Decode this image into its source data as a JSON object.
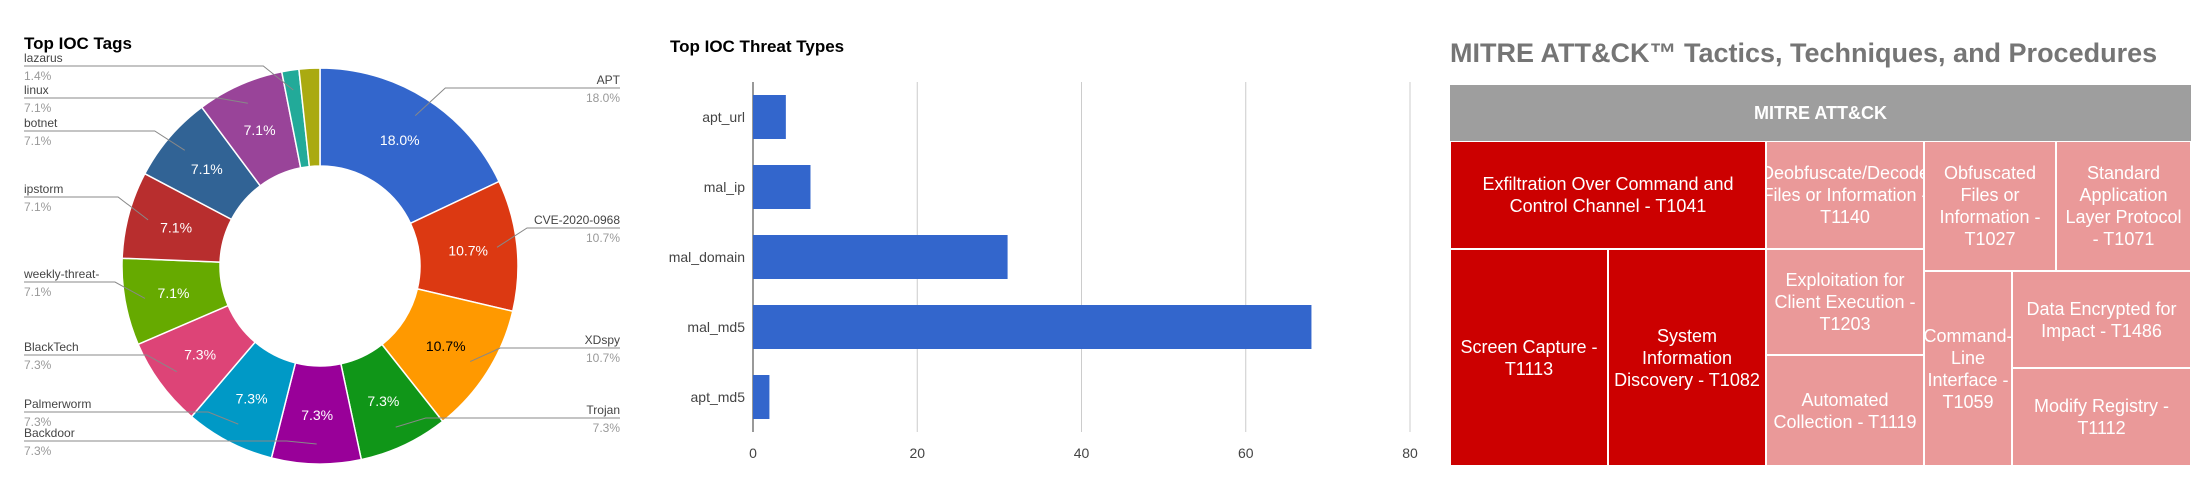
{
  "chart_data": [
    {
      "type": "pie",
      "title": "Top IOC Tags",
      "donut": true,
      "slices": [
        {
          "label": "APT",
          "value": 18.0,
          "display": "18.0%",
          "color": "#3366cc",
          "side": "right"
        },
        {
          "label": "CVE-2020-0968",
          "value": 10.7,
          "display": "10.7%",
          "color": "#dc3912",
          "side": "right"
        },
        {
          "label": "XDspy",
          "value": 10.7,
          "display": "10.7%",
          "color": "#ff9900",
          "side": "right"
        },
        {
          "label": "Trojan",
          "value": 7.3,
          "display": "7.3%",
          "color": "#109618",
          "side": "right"
        },
        {
          "label": "Backdoor",
          "value": 7.3,
          "display": "7.3%",
          "color": "#990099",
          "side": "left"
        },
        {
          "label": "Palmerworm",
          "value": 7.3,
          "display": "7.3%",
          "color": "#0099c6",
          "side": "left"
        },
        {
          "label": "BlackTech",
          "value": 7.3,
          "display": "7.3%",
          "color": "#dd4477",
          "side": "left"
        },
        {
          "label": "weekly-threat-",
          "value": 7.1,
          "display": "7.1%",
          "color": "#66aa00",
          "side": "left"
        },
        {
          "label": "ipstorm",
          "value": 7.1,
          "display": "7.1%",
          "color": "#b82e2e",
          "side": "left"
        },
        {
          "label": "botnet",
          "value": 7.1,
          "display": "7.1%",
          "color": "#316395",
          "side": "left"
        },
        {
          "label": "linux",
          "value": 7.1,
          "display": "7.1%",
          "color": "#994499",
          "side": "left"
        },
        {
          "label": "lazarus",
          "value": 1.4,
          "display": "1.4%",
          "color": "#22aa99",
          "side": "left"
        },
        {
          "label": "",
          "value": 1.7,
          "display": "",
          "color": "#aaaa11",
          "side": "none"
        }
      ]
    },
    {
      "type": "bar",
      "orientation": "horizontal",
      "title": "Top IOC Threat Types",
      "categories": [
        "apt_url",
        "mal_ip",
        "mal_domain",
        "mal_md5",
        "apt_md5"
      ],
      "values": [
        4,
        7,
        31,
        68,
        2
      ],
      "xlim": [
        0,
        80
      ],
      "xticks": [
        "0",
        "20",
        "40",
        "60",
        "80"
      ],
      "color": "#3366cc",
      "grid": true
    },
    {
      "type": "treemap",
      "title": "MITRE ATT&CK™ Tactics, Techniques, and Procedures",
      "root": "MITRE ATT&CK",
      "cells": [
        {
          "label": "Exfiltration Over Command and Control Channel - T1041",
          "color": "#cc0000"
        },
        {
          "label": "Deobfuscate/Decode Files or Information - T1140",
          "color": "#ea9999"
        },
        {
          "label": "Obfuscated Files or Information - T1027",
          "color": "#ea9999"
        },
        {
          "label": "Standard Application Layer Protocol - T1071",
          "color": "#ea9999"
        },
        {
          "label": "Screen Capture - T1113",
          "color": "#cc0000"
        },
        {
          "label": "System Information Discovery - T1082",
          "color": "#cc0000"
        },
        {
          "label": "Exploitation for Client Execution - T1203",
          "color": "#ea9999"
        },
        {
          "label": "Automated Collection - T1119",
          "color": "#ea9999"
        },
        {
          "label": "Command-Line Interface - T1059",
          "color": "#ea9999"
        },
        {
          "label": "Data Encrypted for Impact - T1486",
          "color": "#ea9999"
        },
        {
          "label": "Modify Registry - T1112",
          "color": "#ea9999"
        }
      ]
    }
  ]
}
